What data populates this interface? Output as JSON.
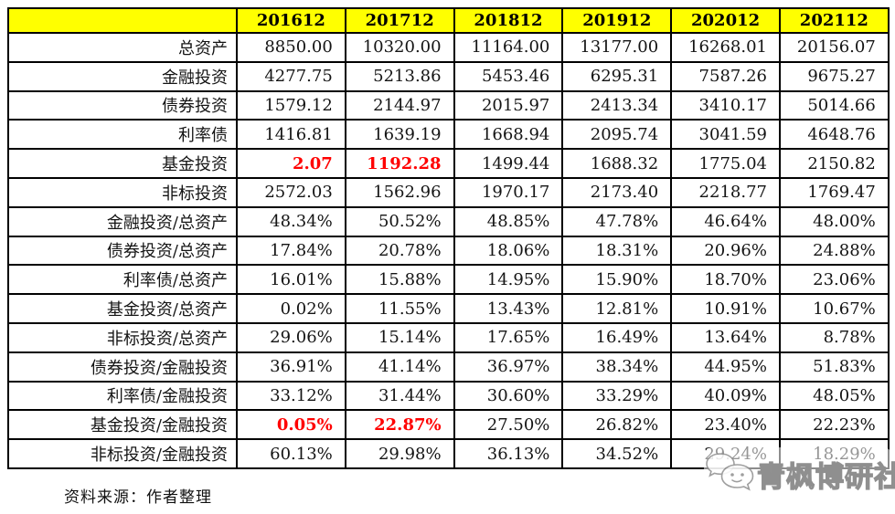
{
  "table": {
    "corner_label": "",
    "years": [
      "201612",
      "201712",
      "201812",
      "201912",
      "202012",
      "202112"
    ],
    "rows": [
      {
        "label": "总资产",
        "values": [
          "8850.00",
          "10320.00",
          "11164.00",
          "13177.00",
          "16268.01",
          "20156.07"
        ],
        "red": []
      },
      {
        "label": "金融投资",
        "values": [
          "4277.75",
          "5213.86",
          "5453.46",
          "6295.31",
          "7587.26",
          "9675.27"
        ],
        "red": []
      },
      {
        "label": "债券投资",
        "values": [
          "1579.12",
          "2144.97",
          "2015.97",
          "2413.34",
          "3410.17",
          "5014.66"
        ],
        "red": []
      },
      {
        "label": "利率债",
        "values": [
          "1416.81",
          "1639.19",
          "1668.94",
          "2095.74",
          "3041.59",
          "4648.76"
        ],
        "red": []
      },
      {
        "label": "基金投资",
        "values": [
          "2.07",
          "1192.28",
          "1499.44",
          "1688.32",
          "1775.04",
          "2150.82"
        ],
        "red": [
          0,
          1
        ]
      },
      {
        "label": "非标投资",
        "values": [
          "2572.03",
          "1562.96",
          "1970.17",
          "2173.40",
          "2218.77",
          "1769.47"
        ],
        "red": []
      },
      {
        "label": "金融投资/总资产",
        "values": [
          "48.34%",
          "50.52%",
          "48.85%",
          "47.78%",
          "46.64%",
          "48.00%"
        ],
        "red": []
      },
      {
        "label": "债券投资/总资产",
        "values": [
          "17.84%",
          "20.78%",
          "18.06%",
          "18.31%",
          "20.96%",
          "24.88%"
        ],
        "red": []
      },
      {
        "label": "利率债/总资产",
        "values": [
          "16.01%",
          "15.88%",
          "14.95%",
          "15.90%",
          "18.70%",
          "23.06%"
        ],
        "red": []
      },
      {
        "label": "基金投资/总资产",
        "values": [
          "0.02%",
          "11.55%",
          "13.43%",
          "12.81%",
          "10.91%",
          "10.67%"
        ],
        "red": []
      },
      {
        "label": "非标投资/总资产",
        "values": [
          "29.06%",
          "15.14%",
          "17.65%",
          "16.49%",
          "13.64%",
          "8.78%"
        ],
        "red": []
      },
      {
        "label": "债券投资/金融投资",
        "values": [
          "36.91%",
          "41.14%",
          "36.97%",
          "38.34%",
          "44.95%",
          "51.83%"
        ],
        "red": []
      },
      {
        "label": "利率债/金融投资",
        "values": [
          "33.12%",
          "31.44%",
          "30.60%",
          "33.29%",
          "40.09%",
          "48.05%"
        ],
        "red": []
      },
      {
        "label": "基金投资/金融投资",
        "values": [
          "0.05%",
          "22.87%",
          "27.50%",
          "26.82%",
          "23.40%",
          "22.23%"
        ],
        "red": [
          0,
          1
        ]
      },
      {
        "label": "非标投资/金融投资",
        "values": [
          "60.13%",
          "29.98%",
          "36.13%",
          "34.52%",
          "29.24%",
          "18.29%"
        ],
        "red": []
      }
    ]
  },
  "footer": {
    "source_note": "资料来源：作者整理"
  },
  "watermark": {
    "text": "青枫博研社",
    "icon": "wechat-chat-bubbles-icon"
  },
  "colors": {
    "header_bg": "#FFFF00",
    "highlight_red": "#FF0000",
    "border": "#000000"
  }
}
